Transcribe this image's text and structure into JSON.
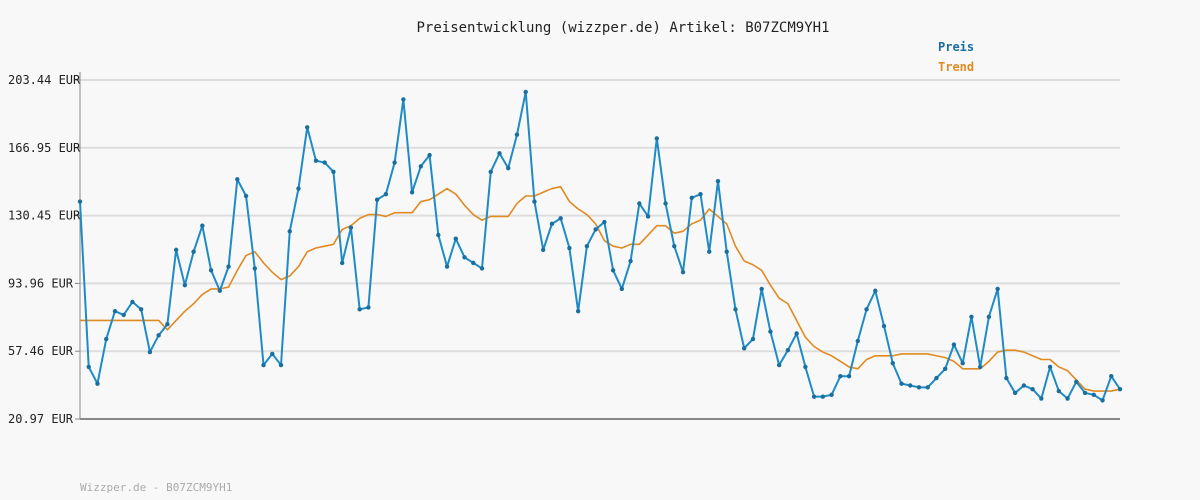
{
  "chart_data": {
    "type": "line",
    "title": "Preisentwicklung (wizzper.de) Artikel: B07ZCM9YH1",
    "footer": "Wizzper.de - B07ZCM9YH1",
    "xlabel": "",
    "ylabel": "",
    "ylim": [
      20.97,
      203.44
    ],
    "y_ticks": [
      20.97,
      57.46,
      93.96,
      130.45,
      166.95,
      203.44
    ],
    "y_tick_labels": [
      "20.97 EUR",
      "57.46 EUR",
      "93.96 EUR",
      "130.45 EUR",
      "166.95 EUR",
      "203.44 EUR"
    ],
    "grid": true,
    "legend_position": "top-right",
    "colors": {
      "preis": "#1f8bc6",
      "trend": "#e08a22",
      "grid": "#dddddd",
      "axis": "#888888"
    },
    "series": [
      {
        "name": "Preis",
        "values": [
          138,
          49,
          40,
          64,
          79,
          77,
          84,
          80,
          57,
          66,
          72,
          112,
          93,
          111,
          125,
          101,
          90,
          103,
          150,
          141,
          102,
          50,
          56,
          50,
          122,
          145,
          178,
          160,
          159,
          154,
          105,
          124,
          80,
          81,
          139,
          142,
          159,
          193,
          143,
          157,
          163,
          120,
          103,
          118,
          108,
          105,
          102,
          154,
          164,
          156,
          174,
          197,
          138,
          112,
          126,
          129,
          113,
          79,
          114,
          123,
          127,
          101,
          91,
          106,
          137,
          130,
          172,
          137,
          114,
          100,
          140,
          142,
          111,
          149,
          111,
          80,
          59,
          64,
          91,
          68,
          50,
          58,
          67,
          49,
          33,
          33,
          34,
          44,
          44,
          63,
          80,
          90,
          71,
          51,
          40,
          39,
          38,
          38,
          43,
          48,
          61,
          51,
          76,
          49,
          76,
          91,
          43,
          35,
          39,
          37,
          32,
          49,
          36,
          32,
          41,
          35,
          34,
          31,
          44,
          37
        ]
      },
      {
        "name": "Trend",
        "values": [
          74,
          74,
          74,
          74,
          74,
          74,
          74,
          74,
          74,
          74,
          69,
          74,
          79,
          83,
          88,
          91,
          91,
          92,
          101,
          109,
          111,
          105,
          100,
          96,
          98,
          103,
          111,
          113,
          114,
          115,
          123,
          125,
          129,
          131,
          131,
          130,
          132,
          132,
          132,
          138,
          139,
          142,
          145,
          142,
          136,
          131,
          128,
          130,
          130,
          130,
          137,
          141,
          141,
          143,
          145,
          146,
          138,
          134,
          131,
          126,
          117,
          114,
          113,
          115,
          115,
          120,
          125,
          125,
          121,
          122,
          126,
          128,
          134,
          130,
          126,
          114,
          106,
          104,
          101,
          93,
          86,
          83,
          74,
          65,
          60,
          57,
          55,
          52,
          49,
          48,
          53,
          55,
          55,
          55,
          56,
          56,
          56,
          56,
          55,
          54,
          52,
          48,
          48,
          48,
          52,
          57,
          58,
          58,
          57,
          55,
          53,
          53,
          49,
          47,
          42,
          37,
          36,
          36,
          36,
          37
        ]
      }
    ]
  }
}
